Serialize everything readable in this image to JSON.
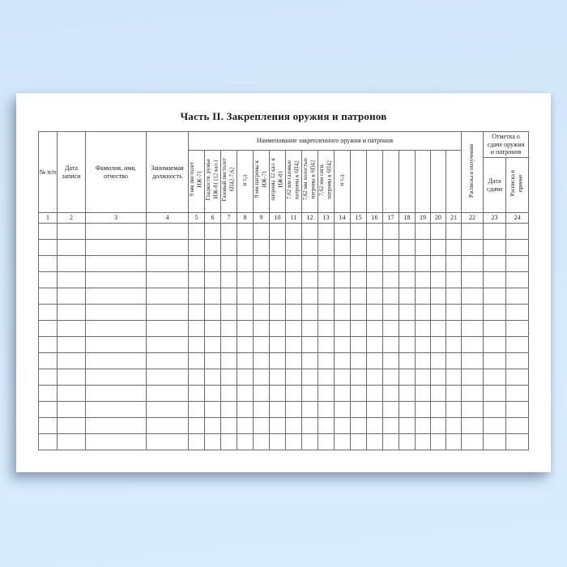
{
  "doc": {
    "title": "Часть II. Закрепления оружия и патронов",
    "table": {
      "col1": "№ п/п",
      "col2": "Дата записи",
      "col3": "Фамилия, имя,\nотчество",
      "col4": "Занимаемая\nдолжность",
      "group_weapons": "Наименование закрепленного оружия и патронов",
      "group_return": "Отметка о\nсдаче оружия\nи патронов",
      "col22": "Расписка в получении",
      "col23": "Дата\nсдачи",
      "col24": "Расписка в\nприеме",
      "weapon_cols": [
        "9 мм пистолет\nИЖ-71",
        "Гладкоств. ружье\nИЖ-81 (12 кал.)",
        "Газовый пистолет\n6П42-7,62",
        "и т.д.",
        "9 мм патроны к\nИЖ-71",
        "патроны 12 кал. к\nИЖ-81",
        "7,62 мм газовые\nпатроны к 6П42",
        "7,62 мм холостые\nпатроны к 6П42",
        "7,62 мм сигн.\nпатроны к 6П42",
        "и т.д.",
        "",
        "",
        "",
        "",
        "",
        "",
        ""
      ],
      "column_numbers": [
        "1",
        "2",
        "3",
        "4",
        "5",
        "6",
        "7",
        "8",
        "9",
        "10",
        "11",
        "12",
        "13",
        "14",
        "15",
        "16",
        "17",
        "18",
        "19",
        "20",
        "21",
        "22",
        "23",
        "24"
      ],
      "empty_row_count": 14
    }
  }
}
